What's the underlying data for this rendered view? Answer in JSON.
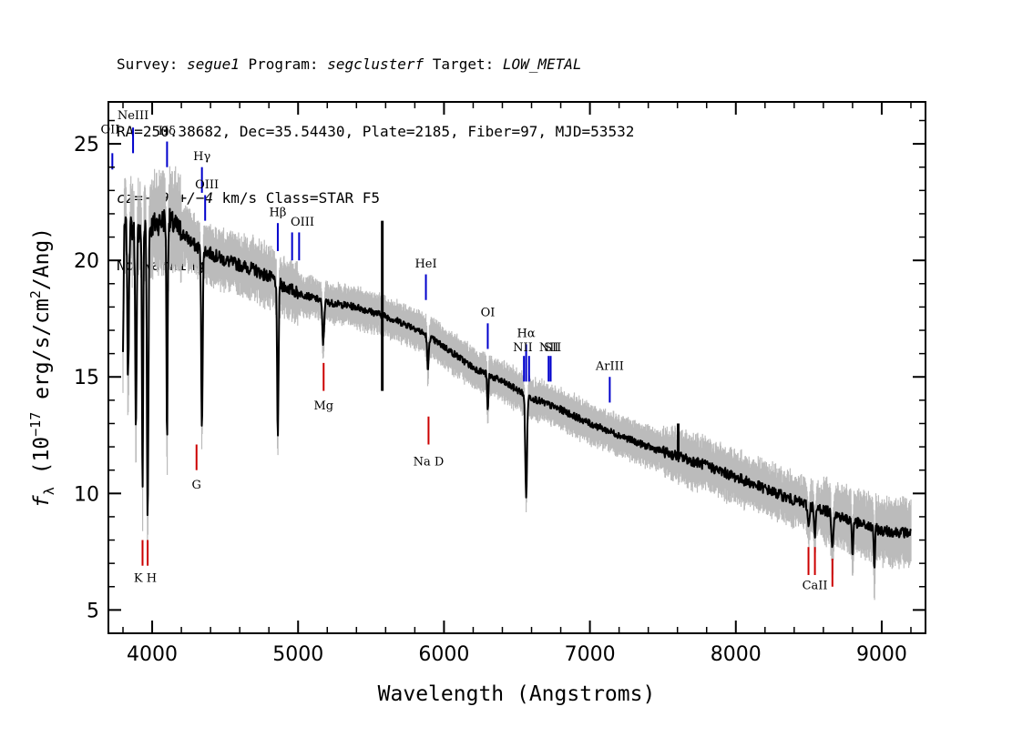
{
  "header": {
    "line1": {
      "survey_key": "Survey: ",
      "survey": "segue1",
      "program_key": " Program: ",
      "program": "segclusterf",
      "target_key": " Target: ",
      "target": "LOW_METAL"
    },
    "line2": "RA=250.38682, Dec=35.54430, Plate=2185, Fiber=97, MJD=53532",
    "line3": {
      "cz_key": "cz=",
      "cz": "−292+/−4",
      "rest": " km/s Class=STAR F5"
    },
    "line4": "No warnings."
  },
  "chart_data": {
    "type": "line",
    "xlabel": "Wavelength (Angstroms)",
    "ylabel_parts": {
      "f": "f",
      "sub": "λ",
      "pre": " (10",
      "exp": "−17",
      "mid": " erg/s/cm",
      "exp2": "2",
      "post": "/Ang)"
    },
    "xlim": [
      3700,
      9300
    ],
    "ylim": [
      4,
      26.8
    ],
    "xticks": [
      4000,
      5000,
      6000,
      7000,
      8000,
      9000
    ],
    "yticks": [
      5,
      10,
      15,
      20,
      25
    ],
    "grid": false,
    "colors": {
      "flux": "#000000",
      "error": "#bbbbbb",
      "emission": "#0000cc",
      "absorption": "#cc0000"
    },
    "continuum": {
      "x": [
        3800,
        3900,
        4000,
        4100,
        4200,
        4300,
        4400,
        4500,
        4600,
        4700,
        4800,
        4900,
        5000,
        5200,
        5400,
        5600,
        5800,
        6000,
        6200,
        6400,
        6600,
        6800,
        7000,
        7200,
        7400,
        7600,
        7800,
        8000,
        8200,
        8400,
        8600,
        8800,
        9000,
        9200
      ],
      "y": [
        21.5,
        21.3,
        21.5,
        21.8,
        21.2,
        20.6,
        20.3,
        20.0,
        19.8,
        19.6,
        19.3,
        18.9,
        18.6,
        18.2,
        18.0,
        17.6,
        17.1,
        16.3,
        15.4,
        14.8,
        14.1,
        13.6,
        13.0,
        12.5,
        12.0,
        11.6,
        11.2,
        10.7,
        10.2,
        9.7,
        9.3,
        8.8,
        8.4,
        8.3
      ]
    },
    "absorption_features": [
      {
        "x": 3798,
        "depth": 6.0,
        "width": 5
      },
      {
        "x": 3835,
        "depth": 6.5,
        "width": 5
      },
      {
        "x": 3889,
        "depth": 8.5,
        "width": 5
      },
      {
        "x": 3934,
        "depth": 11.5,
        "width": 4
      },
      {
        "x": 3969,
        "depth": 12.5,
        "width": 5
      },
      {
        "x": 4102,
        "depth": 9.5,
        "width": 4
      },
      {
        "x": 4341,
        "depth": 7.5,
        "width": 5
      },
      {
        "x": 4861,
        "depth": 6.5,
        "width": 5
      },
      {
        "x": 5172,
        "depth": 1.8,
        "width": 6
      },
      {
        "x": 5890,
        "depth": 1.5,
        "width": 5
      },
      {
        "x": 6300,
        "depth": 1.6,
        "width": 4
      },
      {
        "x": 6563,
        "depth": 4.3,
        "width": 6
      },
      {
        "x": 8498,
        "depth": 0.9,
        "width": 6
      },
      {
        "x": 8542,
        "depth": 1.3,
        "width": 6
      },
      {
        "x": 8662,
        "depth": 1.4,
        "width": 6
      },
      {
        "x": 8800,
        "depth": 1.5,
        "width": 4
      },
      {
        "x": 8950,
        "depth": 1.7,
        "width": 4
      }
    ],
    "spikes": [
      {
        "x": 5577,
        "top": 21.7,
        "bottom": 14.4
      },
      {
        "x": 7605,
        "top": 13.0,
        "bottom": 11.6
      }
    ],
    "emission_lines": [
      {
        "label": "OII",
        "x": 3727,
        "top": 24.6,
        "bottom": 23.9
      },
      {
        "label": "NeIII",
        "x": 3869,
        "top": 25.7,
        "bottom": 24.6
      },
      {
        "label": "Hδ",
        "x": 4102,
        "top": 25.1,
        "bottom": 24.0
      },
      {
        "label": "Hγ",
        "x": 4341,
        "top": 24.0,
        "bottom": 22.9
      },
      {
        "label": "OIII",
        "x": 4363,
        "top": 22.8,
        "bottom": 21.7
      },
      {
        "label": "Hβ",
        "x": 4861,
        "top": 21.6,
        "bottom": 20.4
      },
      {
        "label": "OIII",
        "x": 4959,
        "top": 21.2,
        "bottom": 20.0
      },
      {
        "label": "OIII",
        "x": 5007,
        "top": 21.2,
        "bottom": 20.0
      },
      {
        "label": "HeI",
        "x": 5876,
        "top": 19.4,
        "bottom": 18.3
      },
      {
        "label": "OI",
        "x": 6300,
        "top": 17.3,
        "bottom": 16.2
      },
      {
        "label": "NII",
        "x": 6548,
        "top": 15.9,
        "bottom": 14.8
      },
      {
        "label": "Hα",
        "x": 6563,
        "top": 16.4,
        "bottom": 14.8
      },
      {
        "label": "NII",
        "x": 6583,
        "top": 15.9,
        "bottom": 14.8
      },
      {
        "label": "SII",
        "x": 6717,
        "top": 15.9,
        "bottom": 14.8
      },
      {
        "label": "SII",
        "x": 6731,
        "top": 15.9,
        "bottom": 14.8
      },
      {
        "label": "ArIII",
        "x": 7136,
        "top": 15.0,
        "bottom": 13.9
      }
    ],
    "absorption_lines": [
      {
        "label": "K",
        "x": 3934,
        "top": 8.0,
        "bottom": 6.9
      },
      {
        "label": "H",
        "x": 3969,
        "top": 8.0,
        "bottom": 6.9
      },
      {
        "label": "G",
        "x": 4304,
        "top": 12.1,
        "bottom": 11.0
      },
      {
        "label": "Mg",
        "x": 5175,
        "top": 15.6,
        "bottom": 14.4
      },
      {
        "label": "Na D",
        "x": 5894,
        "top": 13.3,
        "bottom": 12.1
      },
      {
        "label": "CaII",
        "x": 8498,
        "top": 7.7,
        "bottom": 6.5
      },
      {
        "label": "CaII",
        "x": 8542,
        "top": 7.7,
        "bottom": 6.5
      },
      {
        "label": "CaII",
        "x": 8662,
        "top": 7.2,
        "bottom": 6.0
      }
    ],
    "emission_labels": [
      "OII",
      "NeIII",
      "Hδ",
      "Hγ",
      "OIII",
      "Hβ",
      "OIII",
      "HeI",
      "OI",
      "NII",
      "Hα",
      "NII",
      "SII",
      "ArIII"
    ],
    "absorption_labels": [
      "K H",
      "G",
      "Mg",
      "Na D",
      "CaII"
    ]
  }
}
